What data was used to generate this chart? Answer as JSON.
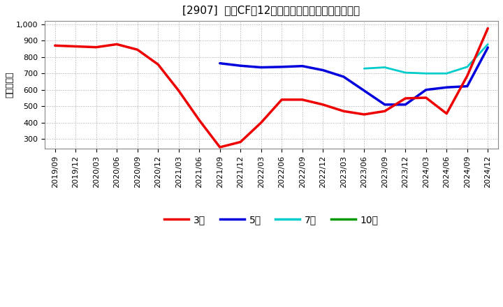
{
  "title": "[2907]  営業CFの12か月移動合計の標準偏差の推移",
  "ylabel": "（百万円）",
  "ylim": [
    240,
    1020
  ],
  "yticks": [
    300,
    400,
    500,
    600,
    700,
    800,
    900,
    1000
  ],
  "ytick_labels": [
    "300",
    "400",
    "500",
    "600",
    "700",
    "800",
    "900",
    "1,000"
  ],
  "background_color": "#ffffff",
  "plot_bg_color": "#ffffff",
  "grid_color": "#aaaaaa",
  "series_3year": {
    "color": "#ee0000",
    "label": "3年",
    "x": [
      0,
      1,
      2,
      3,
      4,
      5,
      6,
      7,
      8,
      9,
      10,
      11,
      12,
      13,
      14,
      15,
      16,
      17,
      18,
      19,
      20,
      21
    ],
    "y": [
      870,
      865,
      860,
      878,
      845,
      755,
      595,
      415,
      250,
      282,
      400,
      540,
      540,
      510,
      470,
      450,
      470,
      548,
      552,
      455,
      685,
      975
    ]
  },
  "series_5year": {
    "color": "#0000dd",
    "label": "5年",
    "x": [
      8,
      9,
      10,
      11,
      12,
      13,
      14,
      15,
      16,
      17,
      18,
      19,
      20,
      21
    ],
    "y": [
      762,
      747,
      737,
      740,
      745,
      720,
      680,
      595,
      510,
      510,
      600,
      615,
      622,
      858
    ]
  },
  "series_7year": {
    "color": "#00cccc",
    "label": "7年",
    "x": [
      15,
      16,
      17,
      18,
      19,
      20,
      21
    ],
    "y": [
      730,
      737,
      705,
      700,
      700,
      740,
      878
    ]
  },
  "series_10year": {
    "color": "#009900",
    "label": "10年",
    "x": [],
    "y": []
  },
  "x_tick_labels": [
    "2019/09",
    "2019/12",
    "2020/03",
    "2020/06",
    "2020/09",
    "2020/12",
    "2021/03",
    "2021/06",
    "2021/09",
    "2021/12",
    "2022/03",
    "2022/06",
    "2022/09",
    "2022/12",
    "2023/03",
    "2023/06",
    "2023/09",
    "2023/12",
    "2024/03",
    "2024/06",
    "2024/09",
    "2024/12"
  ],
  "legend_labels": [
    "3年",
    "5年",
    "7年",
    "10年"
  ],
  "legend_colors": [
    "#ee0000",
    "#0000dd",
    "#00cccc",
    "#009900"
  ],
  "linewidth": 2.0,
  "title_fontsize": 11,
  "tick_fontsize": 8,
  "ylabel_fontsize": 9,
  "legend_fontsize": 10
}
